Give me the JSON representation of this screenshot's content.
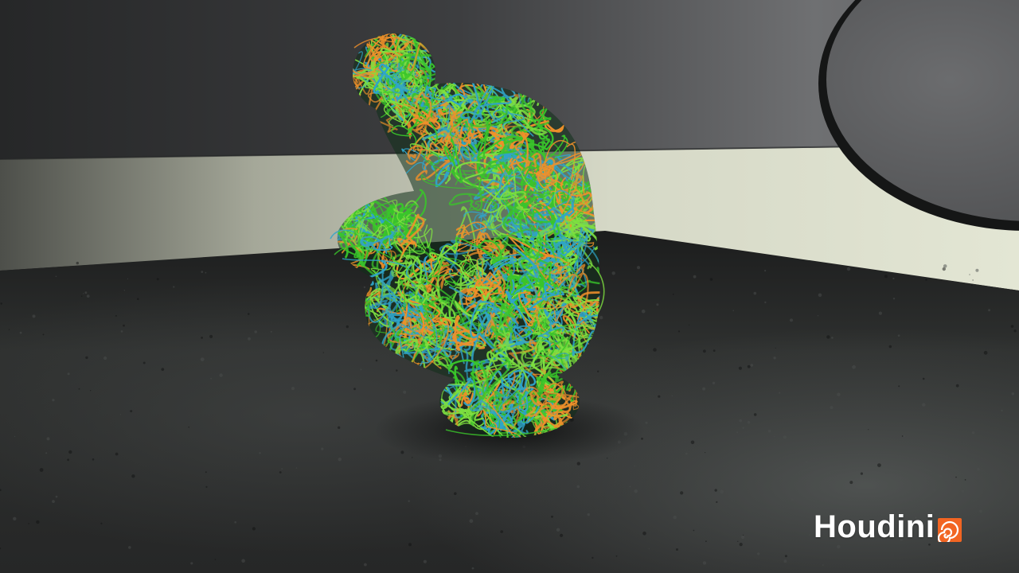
{
  "watermark": {
    "text": "Houdini",
    "icon": "houdini-swirl-icon",
    "brand_color": "#f26522"
  },
  "scene": {
    "strand_colors": [
      "#39c52a",
      "#2fa4c9",
      "#f0902a",
      "#7ee040"
    ],
    "wall_color": "#3b3c3d",
    "floor_color": "#2a2b2a",
    "band_color": "#d9dccb"
  }
}
